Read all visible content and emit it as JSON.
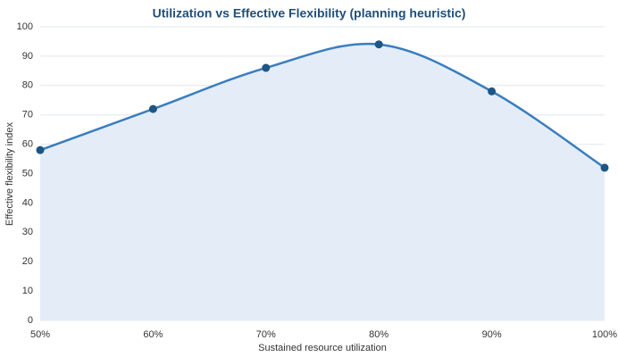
{
  "chart_data": {
    "type": "line",
    "title": "Utilization vs Effective Flexibility (planning heuristic)",
    "x_label": "Sustained resource utilization",
    "y_label": "Effective flexibility index",
    "categories": [
      "50%",
      "60%",
      "70%",
      "80%",
      "90%",
      "100%"
    ],
    "values": [
      58,
      72,
      86,
      94,
      78,
      52
    ],
    "color": "#3a7dbf",
    "point_color": "#1d5585",
    "fill_color": "#e4edf7",
    "area": true,
    "smooth": true,
    "ylim": [
      0,
      100
    ],
    "yticks": [
      0,
      10,
      20,
      30,
      40,
      50,
      60,
      70,
      80,
      90,
      100
    ],
    "grid": true
  }
}
